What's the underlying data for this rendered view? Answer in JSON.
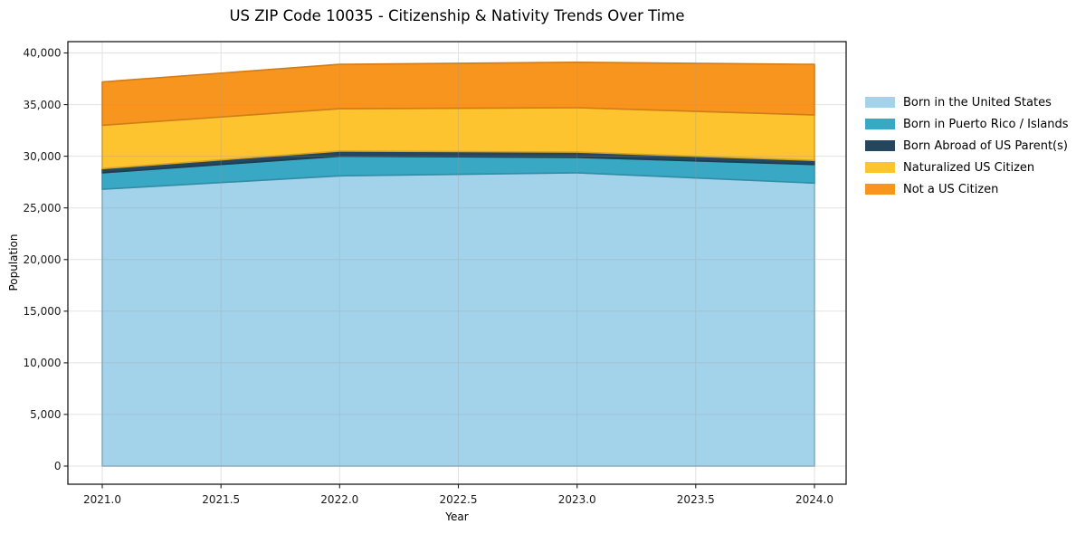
{
  "chart_data": {
    "type": "area",
    "stacked": true,
    "title": "US ZIP Code 10035 - Citizenship & Nativity Trends Over Time",
    "xlabel": "Year",
    "ylabel": "Population",
    "x": [
      2021,
      2022,
      2023,
      2024
    ],
    "series": [
      {
        "name": "Born in the United States",
        "color": "#A3D3EA",
        "values": [
          26800,
          28100,
          28400,
          27400
        ]
      },
      {
        "name": "Born in Puerto Rico / Islands",
        "color": "#39A8C4",
        "values": [
          1600,
          1900,
          1500,
          1800
        ]
      },
      {
        "name": "Born Abroad of US Parent(s)",
        "color": "#24465E",
        "values": [
          400,
          500,
          500,
          400
        ]
      },
      {
        "name": "Naturalized US Citizen",
        "color": "#FDC42F",
        "values": [
          4200,
          4100,
          4300,
          4400
        ]
      },
      {
        "name": "Not a US Citizen",
        "color": "#F8951E",
        "values": [
          4200,
          4300,
          4400,
          4900
        ]
      }
    ],
    "totals": [
      37200,
      38900,
      39100,
      38900
    ],
    "xtick_values": [
      2021.0,
      2021.5,
      2022.0,
      2022.5,
      2023.0,
      2023.5,
      2024.0
    ],
    "xtick_labels": [
      "2021.0",
      "2021.5",
      "2022.0",
      "2022.5",
      "2023.0",
      "2023.5",
      "2024.0"
    ],
    "ytick_values": [
      0,
      5000,
      10000,
      15000,
      20000,
      25000,
      30000,
      35000,
      40000
    ],
    "ytick_labels": [
      "0",
      "5,000",
      "10,000",
      "15,000",
      "20,000",
      "25,000",
      "30,000",
      "35,000",
      "40,000"
    ],
    "ylim": [
      0,
      40000
    ],
    "grid": true,
    "legend_position": "right",
    "colors": {
      "spine": "#1a1a1a",
      "tick_text": "#1a1a1a",
      "gridline": "#999999"
    }
  }
}
